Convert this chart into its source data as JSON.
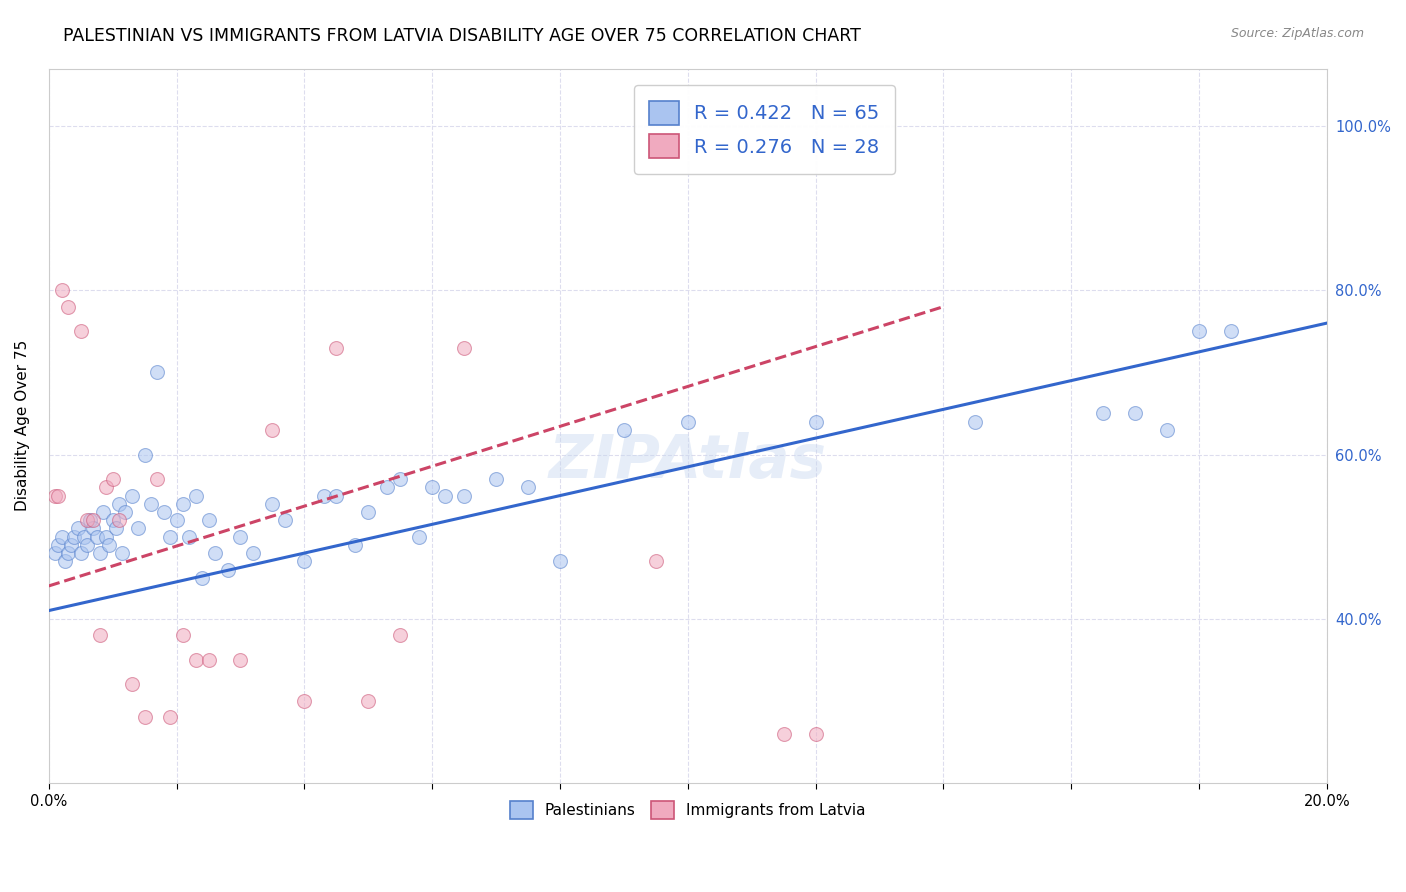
{
  "title": "PALESTINIAN VS IMMIGRANTS FROM LATVIA DISABILITY AGE OVER 75 CORRELATION CHART",
  "source": "Source: ZipAtlas.com",
  "ylabel": "Disability Age Over 75",
  "xlim": [
    0.0,
    20.0
  ],
  "ylim": [
    20.0,
    107.0
  ],
  "ytick_values": [
    40.0,
    60.0,
    80.0,
    100.0
  ],
  "xtick_values": [
    0.0,
    2.0,
    4.0,
    6.0,
    8.0,
    10.0,
    12.0,
    14.0,
    16.0,
    18.0,
    20.0
  ],
  "blue_color": "#aac4f0",
  "pink_color": "#f0aabf",
  "blue_edge": "#5580cc",
  "pink_edge": "#cc5577",
  "blue_line_color": "#3366cc",
  "pink_line_color": "#cc4466",
  "watermark": "ZIPAtlas",
  "legend_label_blue": "Palestinians",
  "legend_label_pink": "Immigrants from Latvia",
  "blue_R": 0.422,
  "pink_R": 0.276,
  "blue_N": 65,
  "pink_N": 28,
  "blue_scatter_x": [
    0.1,
    0.15,
    0.2,
    0.25,
    0.3,
    0.35,
    0.4,
    0.45,
    0.5,
    0.55,
    0.6,
    0.65,
    0.7,
    0.75,
    0.8,
    0.85,
    0.9,
    0.95,
    1.0,
    1.05,
    1.1,
    1.15,
    1.2,
    1.3,
    1.4,
    1.5,
    1.6,
    1.7,
    1.8,
    1.9,
    2.0,
    2.1,
    2.2,
    2.3,
    2.4,
    2.5,
    2.6,
    2.8,
    3.0,
    3.2,
    3.5,
    3.7,
    4.0,
    4.3,
    4.5,
    4.8,
    5.0,
    5.3,
    5.5,
    5.8,
    6.0,
    6.2,
    6.5,
    7.0,
    7.5,
    8.0,
    9.0,
    10.0,
    12.0,
    14.5,
    16.5,
    17.0,
    17.5,
    18.0,
    18.5
  ],
  "blue_scatter_y": [
    48,
    49,
    50,
    47,
    48,
    49,
    50,
    51,
    48,
    50,
    49,
    52,
    51,
    50,
    48,
    53,
    50,
    49,
    52,
    51,
    54,
    48,
    53,
    55,
    51,
    60,
    54,
    70,
    53,
    50,
    52,
    54,
    50,
    55,
    45,
    52,
    48,
    46,
    50,
    48,
    54,
    52,
    47,
    55,
    55,
    49,
    53,
    56,
    57,
    50,
    56,
    55,
    55,
    57,
    56,
    47,
    63,
    64,
    64,
    64,
    65,
    65,
    63,
    75,
    75
  ],
  "pink_scatter_x": [
    0.1,
    0.15,
    0.2,
    0.3,
    0.5,
    0.6,
    0.7,
    0.8,
    0.9,
    1.0,
    1.1,
    1.3,
    1.5,
    1.7,
    1.9,
    2.1,
    2.3,
    2.5,
    3.0,
    3.5,
    4.0,
    4.5,
    5.0,
    5.5,
    6.5,
    9.5,
    11.5,
    12.0
  ],
  "pink_scatter_y": [
    55,
    55,
    80,
    78,
    75,
    52,
    52,
    38,
    56,
    57,
    52,
    32,
    28,
    57,
    28,
    38,
    35,
    35,
    35,
    63,
    30,
    73,
    30,
    38,
    73,
    47,
    26,
    26
  ],
  "blue_line_x0": 0.0,
  "blue_line_x1": 20.0,
  "blue_line_y0": 41.0,
  "blue_line_y1": 76.0,
  "pink_line_x0": 0.0,
  "pink_line_x1": 14.0,
  "pink_line_y0": 44.0,
  "pink_line_y1": 78.0,
  "background_color": "#ffffff",
  "grid_color": "#ddddee",
  "title_fontsize": 12.5,
  "axis_label_fontsize": 11,
  "tick_fontsize": 10.5,
  "marker_size": 100,
  "marker_alpha": 0.55
}
